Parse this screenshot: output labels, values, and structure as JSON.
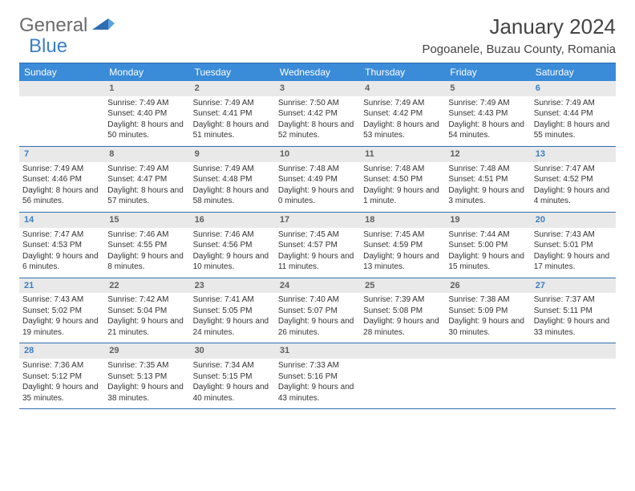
{
  "logo": {
    "text1": "General",
    "text2": "Blue"
  },
  "title": "January 2024",
  "location": "Pogoanele, Buzau County, Romania",
  "colors": {
    "header_bg": "#3a8bd8",
    "header_text": "#ffffff",
    "border": "#2f6fb0",
    "daynum_bg": "#e9e9e9",
    "daynum_text": "#5f5f5f",
    "weekend_text": "#3a7fc4",
    "body_text": "#333333",
    "logo_gray": "#6b6b6b",
    "logo_blue": "#3a7fc4"
  },
  "day_names": [
    "Sunday",
    "Monday",
    "Tuesday",
    "Wednesday",
    "Thursday",
    "Friday",
    "Saturday"
  ],
  "weeks": [
    [
      null,
      {
        "n": "1",
        "sr": "Sunrise: 7:49 AM",
        "ss": "Sunset: 4:40 PM",
        "dl": "Daylight: 8 hours and 50 minutes."
      },
      {
        "n": "2",
        "sr": "Sunrise: 7:49 AM",
        "ss": "Sunset: 4:41 PM",
        "dl": "Daylight: 8 hours and 51 minutes."
      },
      {
        "n": "3",
        "sr": "Sunrise: 7:50 AM",
        "ss": "Sunset: 4:42 PM",
        "dl": "Daylight: 8 hours and 52 minutes."
      },
      {
        "n": "4",
        "sr": "Sunrise: 7:49 AM",
        "ss": "Sunset: 4:42 PM",
        "dl": "Daylight: 8 hours and 53 minutes."
      },
      {
        "n": "5",
        "sr": "Sunrise: 7:49 AM",
        "ss": "Sunset: 4:43 PM",
        "dl": "Daylight: 8 hours and 54 minutes."
      },
      {
        "n": "6",
        "sr": "Sunrise: 7:49 AM",
        "ss": "Sunset: 4:44 PM",
        "dl": "Daylight: 8 hours and 55 minutes."
      }
    ],
    [
      {
        "n": "7",
        "sr": "Sunrise: 7:49 AM",
        "ss": "Sunset: 4:46 PM",
        "dl": "Daylight: 8 hours and 56 minutes."
      },
      {
        "n": "8",
        "sr": "Sunrise: 7:49 AM",
        "ss": "Sunset: 4:47 PM",
        "dl": "Daylight: 8 hours and 57 minutes."
      },
      {
        "n": "9",
        "sr": "Sunrise: 7:49 AM",
        "ss": "Sunset: 4:48 PM",
        "dl": "Daylight: 8 hours and 58 minutes."
      },
      {
        "n": "10",
        "sr": "Sunrise: 7:48 AM",
        "ss": "Sunset: 4:49 PM",
        "dl": "Daylight: 9 hours and 0 minutes."
      },
      {
        "n": "11",
        "sr": "Sunrise: 7:48 AM",
        "ss": "Sunset: 4:50 PM",
        "dl": "Daylight: 9 hours and 1 minute."
      },
      {
        "n": "12",
        "sr": "Sunrise: 7:48 AM",
        "ss": "Sunset: 4:51 PM",
        "dl": "Daylight: 9 hours and 3 minutes."
      },
      {
        "n": "13",
        "sr": "Sunrise: 7:47 AM",
        "ss": "Sunset: 4:52 PM",
        "dl": "Daylight: 9 hours and 4 minutes."
      }
    ],
    [
      {
        "n": "14",
        "sr": "Sunrise: 7:47 AM",
        "ss": "Sunset: 4:53 PM",
        "dl": "Daylight: 9 hours and 6 minutes."
      },
      {
        "n": "15",
        "sr": "Sunrise: 7:46 AM",
        "ss": "Sunset: 4:55 PM",
        "dl": "Daylight: 9 hours and 8 minutes."
      },
      {
        "n": "16",
        "sr": "Sunrise: 7:46 AM",
        "ss": "Sunset: 4:56 PM",
        "dl": "Daylight: 9 hours and 10 minutes."
      },
      {
        "n": "17",
        "sr": "Sunrise: 7:45 AM",
        "ss": "Sunset: 4:57 PM",
        "dl": "Daylight: 9 hours and 11 minutes."
      },
      {
        "n": "18",
        "sr": "Sunrise: 7:45 AM",
        "ss": "Sunset: 4:59 PM",
        "dl": "Daylight: 9 hours and 13 minutes."
      },
      {
        "n": "19",
        "sr": "Sunrise: 7:44 AM",
        "ss": "Sunset: 5:00 PM",
        "dl": "Daylight: 9 hours and 15 minutes."
      },
      {
        "n": "20",
        "sr": "Sunrise: 7:43 AM",
        "ss": "Sunset: 5:01 PM",
        "dl": "Daylight: 9 hours and 17 minutes."
      }
    ],
    [
      {
        "n": "21",
        "sr": "Sunrise: 7:43 AM",
        "ss": "Sunset: 5:02 PM",
        "dl": "Daylight: 9 hours and 19 minutes."
      },
      {
        "n": "22",
        "sr": "Sunrise: 7:42 AM",
        "ss": "Sunset: 5:04 PM",
        "dl": "Daylight: 9 hours and 21 minutes."
      },
      {
        "n": "23",
        "sr": "Sunrise: 7:41 AM",
        "ss": "Sunset: 5:05 PM",
        "dl": "Daylight: 9 hours and 24 minutes."
      },
      {
        "n": "24",
        "sr": "Sunrise: 7:40 AM",
        "ss": "Sunset: 5:07 PM",
        "dl": "Daylight: 9 hours and 26 minutes."
      },
      {
        "n": "25",
        "sr": "Sunrise: 7:39 AM",
        "ss": "Sunset: 5:08 PM",
        "dl": "Daylight: 9 hours and 28 minutes."
      },
      {
        "n": "26",
        "sr": "Sunrise: 7:38 AM",
        "ss": "Sunset: 5:09 PM",
        "dl": "Daylight: 9 hours and 30 minutes."
      },
      {
        "n": "27",
        "sr": "Sunrise: 7:37 AM",
        "ss": "Sunset: 5:11 PM",
        "dl": "Daylight: 9 hours and 33 minutes."
      }
    ],
    [
      {
        "n": "28",
        "sr": "Sunrise: 7:36 AM",
        "ss": "Sunset: 5:12 PM",
        "dl": "Daylight: 9 hours and 35 minutes."
      },
      {
        "n": "29",
        "sr": "Sunrise: 7:35 AM",
        "ss": "Sunset: 5:13 PM",
        "dl": "Daylight: 9 hours and 38 minutes."
      },
      {
        "n": "30",
        "sr": "Sunrise: 7:34 AM",
        "ss": "Sunset: 5:15 PM",
        "dl": "Daylight: 9 hours and 40 minutes."
      },
      {
        "n": "31",
        "sr": "Sunrise: 7:33 AM",
        "ss": "Sunset: 5:16 PM",
        "dl": "Daylight: 9 hours and 43 minutes."
      },
      null,
      null,
      null
    ]
  ]
}
